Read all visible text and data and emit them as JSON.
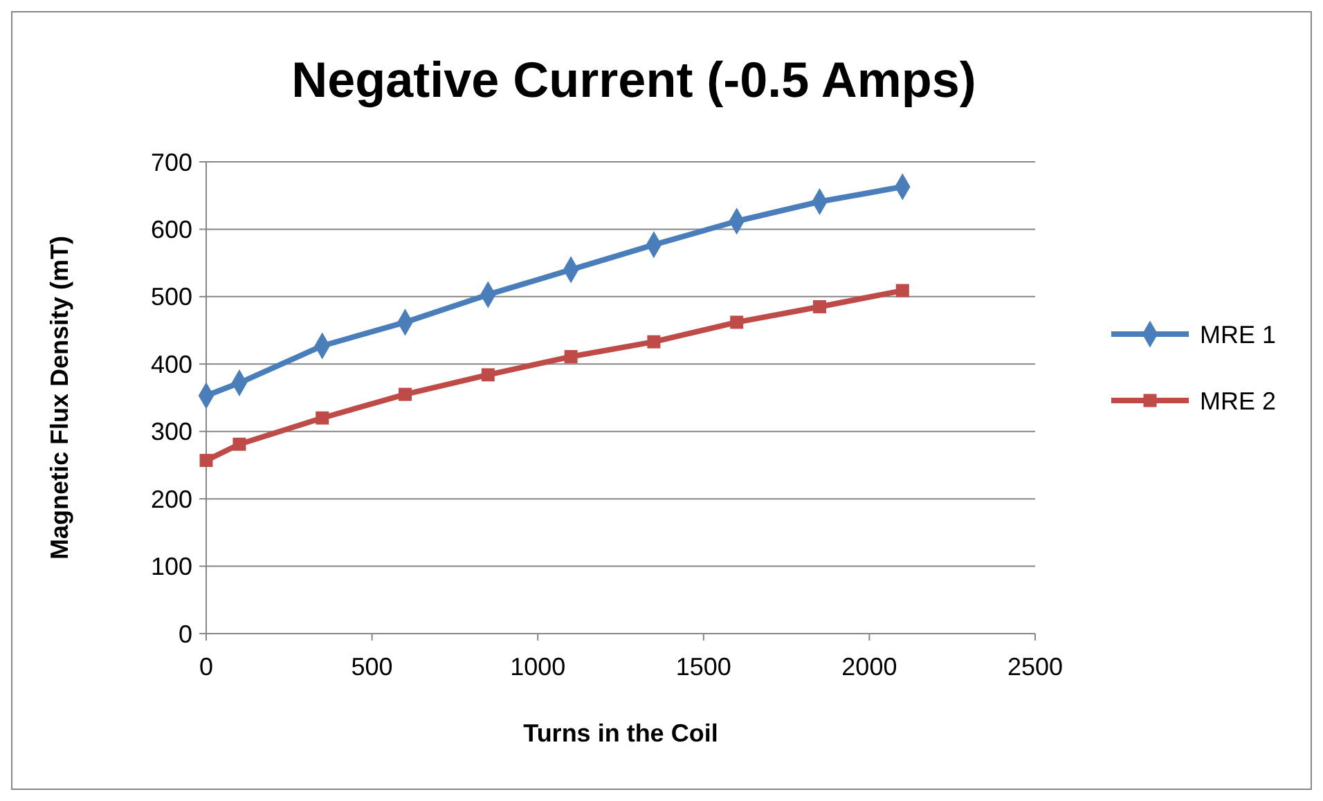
{
  "chart_data": {
    "type": "line",
    "title": "Negative Current (-0.5 Amps)",
    "xlabel": "Turns in the Coil",
    "ylabel": "Magnetic Flux Density (mT)",
    "x": [
      0,
      100,
      350,
      600,
      850,
      1100,
      1350,
      1600,
      1850,
      2100
    ],
    "series": [
      {
        "name": "MRE 1",
        "color": "#4a7ebb",
        "marker": "diamond",
        "values": [
          353,
          372,
          427,
          462,
          503,
          540,
          577,
          612,
          641,
          663
        ]
      },
      {
        "name": "MRE 2",
        "color": "#be4b48",
        "marker": "square",
        "values": [
          257,
          281,
          320,
          355,
          384,
          411,
          433,
          462,
          485,
          509
        ]
      }
    ],
    "xlim": [
      0,
      2500
    ],
    "xticks": [
      0,
      500,
      1000,
      1500,
      2000,
      2500
    ],
    "ylim": [
      0,
      700
    ],
    "yticks": [
      0,
      100,
      200,
      300,
      400,
      500,
      600,
      700
    ],
    "grid": "y",
    "legend": "right",
    "line_style": "solid"
  }
}
